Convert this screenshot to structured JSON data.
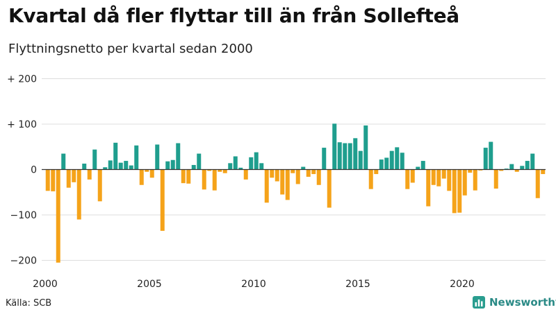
{
  "title": "Kvartal då fler flyttar till än från Sollefteå",
  "subtitle": "Flyttningsnetto per kvartal sedan 2000",
  "source": "Källa: SCB",
  "brand": {
    "name": "Newsworthy",
    "icon": "bar-chart-logo-icon",
    "color": "#2a9d8f"
  },
  "colors": {
    "positive": "#1f9e8e",
    "negative": "#f5a31a",
    "grid": "#dddddd",
    "zero": "#333333"
  },
  "chart_data": {
    "type": "bar",
    "title": "Kvartal då fler flyttar till än från Sollefteå",
    "subtitle": "Flyttningsnetto per kvartal sedan 2000",
    "xlabel": "",
    "ylabel": "",
    "ylim": [
      -210,
      210
    ],
    "xlim": [
      2000.0,
      2024.0
    ],
    "grid": true,
    "legend": "none",
    "y_ticks": [
      {
        "value": 200,
        "label": "+ 200"
      },
      {
        "value": 100,
        "label": "+ 100"
      },
      {
        "value": 0,
        "label": "0"
      },
      {
        "value": -100,
        "label": "−100"
      },
      {
        "value": -200,
        "label": "−200"
      }
    ],
    "x_ticks": [
      {
        "value": 2000,
        "label": "2000"
      },
      {
        "value": 2005,
        "label": "2005"
      },
      {
        "value": 2010,
        "label": "2010"
      },
      {
        "value": 2015,
        "label": "2015"
      },
      {
        "value": 2020,
        "label": "2020"
      }
    ],
    "series": [
      {
        "quarters": [
          "2000Q1",
          "2000Q2",
          "2000Q3",
          "2000Q4",
          "2001Q1",
          "2001Q2",
          "2001Q3",
          "2001Q4",
          "2002Q1",
          "2002Q2",
          "2002Q3",
          "2002Q4",
          "2003Q1",
          "2003Q2",
          "2003Q3",
          "2003Q4",
          "2004Q1",
          "2004Q2",
          "2004Q3",
          "2004Q4",
          "2005Q1",
          "2005Q2",
          "2005Q3",
          "2005Q4",
          "2006Q1",
          "2006Q2",
          "2006Q3",
          "2006Q4",
          "2007Q1",
          "2007Q2",
          "2007Q3",
          "2007Q4",
          "2008Q1",
          "2008Q2",
          "2008Q3",
          "2008Q4",
          "2009Q1",
          "2009Q2",
          "2009Q3",
          "2009Q4",
          "2010Q1",
          "2010Q2",
          "2010Q3",
          "2010Q4",
          "2011Q1",
          "2011Q2",
          "2011Q3",
          "2011Q4",
          "2012Q1",
          "2012Q2",
          "2012Q3",
          "2012Q4",
          "2013Q1",
          "2013Q2",
          "2013Q3",
          "2013Q4",
          "2014Q1",
          "2014Q2",
          "2014Q3",
          "2014Q4",
          "2015Q1",
          "2015Q2",
          "2015Q3",
          "2015Q4",
          "2016Q1",
          "2016Q2",
          "2016Q3",
          "2016Q4",
          "2017Q1",
          "2017Q2",
          "2017Q3",
          "2017Q4",
          "2018Q1",
          "2018Q2",
          "2018Q3",
          "2018Q4",
          "2019Q1",
          "2019Q2",
          "2019Q3",
          "2019Q4",
          "2020Q1",
          "2020Q2",
          "2020Q3",
          "2020Q4",
          "2021Q1",
          "2021Q2",
          "2021Q3",
          "2021Q4",
          "2022Q1",
          "2022Q2",
          "2022Q3",
          "2022Q4",
          "2023Q1",
          "2023Q2",
          "2023Q3",
          "2023Q4"
        ],
        "values": [
          -47,
          -48,
          -205,
          35,
          -40,
          -28,
          -110,
          13,
          -22,
          44,
          -70,
          5,
          20,
          59,
          15,
          19,
          9,
          53,
          -34,
          -5,
          -18,
          55,
          -135,
          18,
          21,
          58,
          -30,
          -31,
          10,
          35,
          -44,
          -3,
          -46,
          -5,
          -8,
          14,
          29,
          4,
          -22,
          27,
          38,
          14,
          -73,
          -18,
          -26,
          -55,
          -67,
          -8,
          -32,
          6,
          -16,
          -10,
          -34,
          48,
          -84,
          101,
          60,
          58,
          58,
          69,
          41,
          97,
          -43,
          -10,
          22,
          26,
          41,
          49,
          37,
          -43,
          -29,
          6,
          19,
          -81,
          -34,
          -37,
          -20,
          -47,
          -96,
          -95,
          -57,
          -7,
          -46,
          -2,
          48,
          61,
          -42,
          -3,
          2,
          12,
          -5,
          8,
          19,
          35,
          -63,
          -10
        ]
      }
    ]
  }
}
